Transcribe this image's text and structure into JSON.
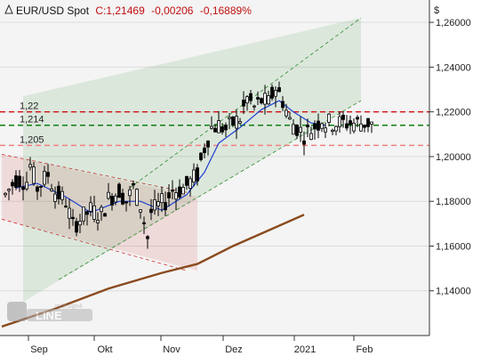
{
  "header": {
    "instrument": "EUR/USD Spot",
    "close_prefix": "C:",
    "close": "1,21469",
    "change": "-0,00206",
    "change_pct": "-0,16889%"
  },
  "currency_symbol": "$",
  "watermark": "mdesign4 LINE",
  "colors": {
    "plot_bg": "#f4f4f4",
    "candle": "#000000",
    "ma_short": "#1f3fd0",
    "ma_long": "#8a4a1e",
    "up_channel": "#2e8b2e",
    "down_channel": "#d03030",
    "level_red": "#d01010",
    "level_green": "#108010",
    "level_pink": "#f08080"
  },
  "chart_data": {
    "type": "candlestick",
    "y_axis": {
      "min": 1.12,
      "max": 1.27,
      "ticks": [
        "1,14000",
        "1,16000",
        "1,18000",
        "1,20000",
        "1,22000",
        "1,24000",
        "1,26000"
      ]
    },
    "x_axis": {
      "ticks": [
        "Sep",
        "Okt",
        "Nov",
        "Dez",
        "2021",
        "Feb"
      ]
    },
    "levels": [
      {
        "label": "1,22",
        "value": 1.22,
        "color": "#d01010",
        "style": "dashed"
      },
      {
        "label": "1,214",
        "value": 1.214,
        "color": "#108010",
        "style": "dashed"
      },
      {
        "label": "1,205",
        "value": 1.205,
        "color": "#f08080",
        "style": "dashed"
      }
    ],
    "up_channel": {
      "start_day": 12,
      "end_day": 202,
      "lower_start": 1.135,
      "lower_end": 1.225,
      "upper_start": 1.227,
      "upper_end": 1.262
    },
    "down_channel": {
      "start_day": 0,
      "end_day": 104,
      "upper_start": 1.201,
      "upper_end": 1.184,
      "lower_start": 1.172,
      "lower_end": 1.149
    },
    "ma_long": [
      [
        0,
        1.124
      ],
      [
        30,
        1.132
      ],
      [
        60,
        1.141
      ],
      [
        90,
        1.148
      ],
      [
        110,
        1.152
      ],
      [
        130,
        1.16
      ],
      [
        150,
        1.167
      ],
      [
        170,
        1.174
      ]
    ],
    "series_days": [
      2,
      208
    ],
    "close_points": [
      [
        2,
        1.183
      ],
      [
        8,
        1.19
      ],
      [
        14,
        1.189
      ],
      [
        16,
        1.196
      ],
      [
        20,
        1.186
      ],
      [
        26,
        1.192
      ],
      [
        30,
        1.184
      ],
      [
        36,
        1.18
      ],
      [
        40,
        1.169
      ],
      [
        44,
        1.172
      ],
      [
        50,
        1.176
      ],
      [
        56,
        1.174
      ],
      [
        60,
        1.181
      ],
      [
        66,
        1.185
      ],
      [
        70,
        1.18
      ],
      [
        74,
        1.186
      ],
      [
        78,
        1.178
      ],
      [
        82,
        1.164
      ],
      [
        84,
        1.175
      ],
      [
        88,
        1.178
      ],
      [
        92,
        1.18
      ],
      [
        96,
        1.185
      ],
      [
        100,
        1.185
      ],
      [
        104,
        1.187
      ],
      [
        110,
        1.192
      ],
      [
        114,
        1.204
      ],
      [
        118,
        1.213
      ],
      [
        122,
        1.214
      ],
      [
        126,
        1.212
      ],
      [
        130,
        1.215
      ],
      [
        134,
        1.217
      ],
      [
        138,
        1.226
      ],
      [
        142,
        1.222
      ],
      [
        146,
        1.225
      ],
      [
        150,
        1.224
      ],
      [
        154,
        1.231
      ],
      [
        158,
        1.225
      ],
      [
        162,
        1.216
      ],
      [
        166,
        1.213
      ],
      [
        170,
        1.21
      ],
      [
        174,
        1.212
      ],
      [
        178,
        1.215
      ],
      [
        180,
        1.217
      ],
      [
        182,
        1.215
      ]
    ],
    "ma_short_points": [
      [
        8,
        1.186
      ],
      [
        20,
        1.188
      ],
      [
        36,
        1.182
      ],
      [
        50,
        1.175
      ],
      [
        66,
        1.18
      ],
      [
        78,
        1.18
      ],
      [
        90,
        1.176
      ],
      [
        104,
        1.183
      ],
      [
        114,
        1.193
      ],
      [
        122,
        1.206
      ],
      [
        134,
        1.213
      ],
      [
        146,
        1.221
      ],
      [
        156,
        1.225
      ],
      [
        164,
        1.22
      ],
      [
        174,
        1.215
      ],
      [
        182,
        1.214
      ]
    ]
  }
}
